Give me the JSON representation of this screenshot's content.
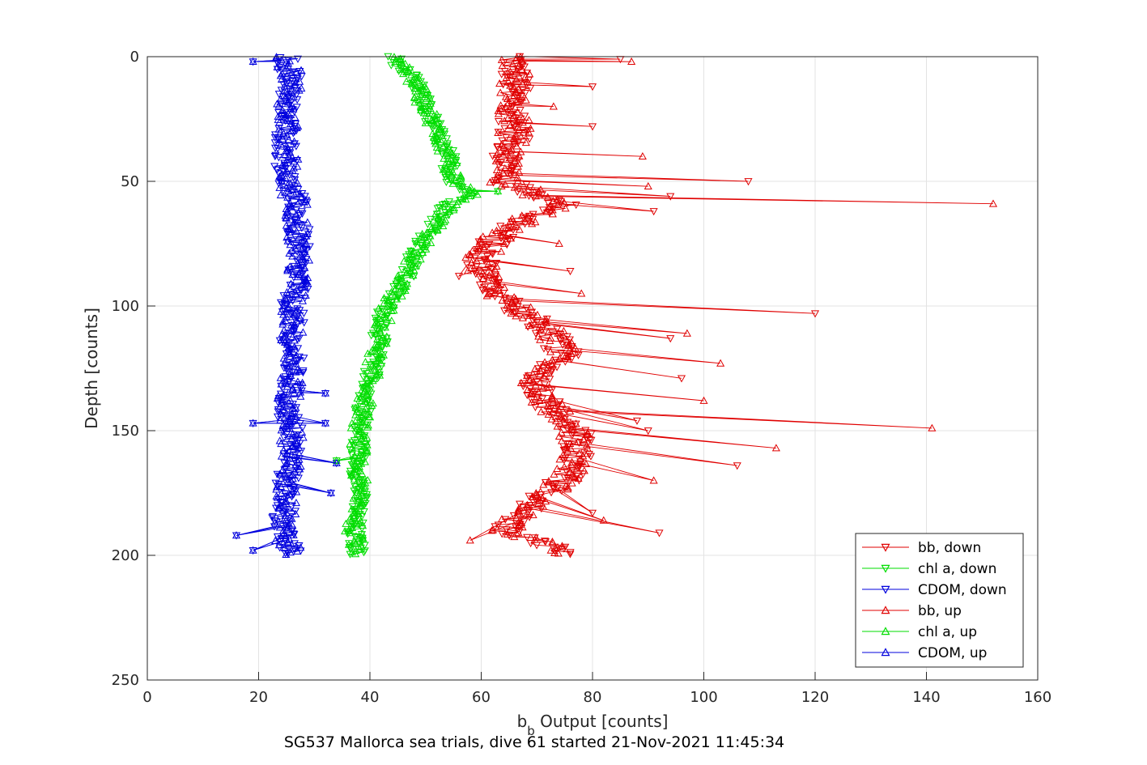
{
  "chart_data": {
    "type": "line",
    "title": "",
    "xlabel_main": "b",
    "xlabel_sub": "b",
    "xlabel_rest": " Output [counts]",
    "ylabel": "Depth [counts]",
    "caption": "SG537 Mallorca sea trials, dive 61 started 21-Nov-2021 11:45:34",
    "xlim": [
      0,
      160
    ],
    "ylim": [
      0,
      250
    ],
    "y_reversed": true,
    "grid": true,
    "xticks": [
      "0",
      "20",
      "40",
      "60",
      "80",
      "100",
      "120",
      "140",
      "160"
    ],
    "yticks": [
      "0",
      "50",
      "100",
      "150",
      "200",
      "250"
    ],
    "legend_position": "bottom-right",
    "series": [
      {
        "name": "bb, down",
        "color": "#e00000",
        "marker": "triangle-down",
        "depth": [
          0,
          10,
          20,
          30,
          40,
          50,
          55,
          60,
          65,
          70,
          80,
          90,
          100,
          110,
          120,
          130,
          140,
          150,
          160,
          170,
          180,
          190,
          200
        ],
        "values": [
          66,
          66,
          66,
          66,
          65,
          64,
          70,
          75,
          68,
          64,
          60,
          61,
          66,
          72,
          75,
          70,
          72,
          77,
          77,
          75,
          69,
          64,
          77
        ]
      },
      {
        "name": "chl a, down",
        "color": "#00dd00",
        "marker": "triangle-down",
        "depth": [
          0,
          10,
          20,
          30,
          40,
          50,
          55,
          60,
          70,
          80,
          90,
          100,
          110,
          120,
          130,
          140,
          150,
          160,
          170,
          180,
          190,
          200
        ],
        "values": [
          44,
          48,
          50,
          52,
          54,
          55,
          58,
          54,
          51,
          48,
          46,
          43,
          42,
          41,
          40,
          39,
          38,
          38,
          38,
          38,
          37,
          38
        ]
      },
      {
        "name": "CDOM, down",
        "color": "#0000dd",
        "marker": "triangle-down",
        "depth": [
          0,
          10,
          20,
          30,
          40,
          50,
          60,
          70,
          80,
          90,
          100,
          110,
          120,
          130,
          140,
          150,
          160,
          170,
          180,
          190,
          200
        ],
        "values": [
          25,
          26,
          25,
          25,
          25,
          25,
          27,
          27,
          27,
          27,
          26,
          26,
          26,
          26,
          25,
          26,
          26,
          25,
          25,
          24,
          26
        ]
      },
      {
        "name": "bb, up",
        "color": "#e00000",
        "marker": "triangle-up",
        "depth": [
          0,
          10,
          20,
          30,
          40,
          50,
          55,
          60,
          65,
          70,
          80,
          90,
          100,
          110,
          120,
          130,
          140,
          150,
          160,
          170,
          180,
          190,
          200
        ],
        "values": [
          66,
          66,
          66,
          66,
          65,
          64,
          70,
          75,
          68,
          64,
          60,
          61,
          66,
          72,
          75,
          70,
          72,
          77,
          77,
          75,
          69,
          64,
          77
        ]
      },
      {
        "name": "chl a, up",
        "color": "#00dd00",
        "marker": "triangle-up",
        "depth": [
          0,
          10,
          20,
          30,
          40,
          50,
          55,
          60,
          70,
          80,
          90,
          100,
          110,
          120,
          130,
          140,
          150,
          160,
          170,
          180,
          190,
          200
        ],
        "values": [
          44,
          48,
          50,
          52,
          54,
          55,
          58,
          54,
          51,
          48,
          46,
          43,
          42,
          41,
          40,
          39,
          38,
          38,
          38,
          38,
          37,
          38
        ]
      },
      {
        "name": "CDOM, up",
        "color": "#0000dd",
        "marker": "triangle-up",
        "depth": [
          0,
          10,
          20,
          30,
          40,
          50,
          60,
          70,
          80,
          90,
          100,
          110,
          120,
          130,
          140,
          150,
          160,
          170,
          180,
          190,
          200
        ],
        "values": [
          25,
          26,
          25,
          25,
          25,
          25,
          27,
          27,
          27,
          27,
          26,
          26,
          26,
          26,
          25,
          26,
          26,
          25,
          25,
          24,
          26
        ]
      }
    ],
    "spikes": {
      "bb": [
        {
          "depth": 1,
          "value": 85
        },
        {
          "depth": 2,
          "value": 87
        },
        {
          "depth": 12,
          "value": 80
        },
        {
          "depth": 20,
          "value": 73
        },
        {
          "depth": 28,
          "value": 80
        },
        {
          "depth": 40,
          "value": 89
        },
        {
          "depth": 50,
          "value": 108
        },
        {
          "depth": 52,
          "value": 90
        },
        {
          "depth": 56,
          "value": 94
        },
        {
          "depth": 59,
          "value": 152
        },
        {
          "depth": 62,
          "value": 91
        },
        {
          "depth": 75,
          "value": 74
        },
        {
          "depth": 86,
          "value": 76
        },
        {
          "depth": 95,
          "value": 78
        },
        {
          "depth": 103,
          "value": 120
        },
        {
          "depth": 111,
          "value": 97
        },
        {
          "depth": 113,
          "value": 94
        },
        {
          "depth": 123,
          "value": 103
        },
        {
          "depth": 129,
          "value": 96
        },
        {
          "depth": 138,
          "value": 100
        },
        {
          "depth": 146,
          "value": 88
        },
        {
          "depth": 149,
          "value": 141
        },
        {
          "depth": 150,
          "value": 90
        },
        {
          "depth": 157,
          "value": 113
        },
        {
          "depth": 164,
          "value": 106
        },
        {
          "depth": 170,
          "value": 91
        },
        {
          "depth": 183,
          "value": 80
        },
        {
          "depth": 186,
          "value": 82
        },
        {
          "depth": 191,
          "value": 92
        },
        {
          "depth": 194,
          "value": 58
        },
        {
          "depth": 88,
          "value": 56
        }
      ],
      "CDOM": [
        {
          "depth": 2,
          "value": 19
        },
        {
          "depth": 135,
          "value": 32
        },
        {
          "depth": 147,
          "value": 19
        },
        {
          "depth": 147,
          "value": 32
        },
        {
          "depth": 163,
          "value": 34
        },
        {
          "depth": 192,
          "value": 16
        },
        {
          "depth": 198,
          "value": 19
        },
        {
          "depth": 175,
          "value": 33
        }
      ],
      "chl": [
        {
          "depth": 54,
          "value": 63
        },
        {
          "depth": 162,
          "value": 34
        }
      ]
    }
  }
}
